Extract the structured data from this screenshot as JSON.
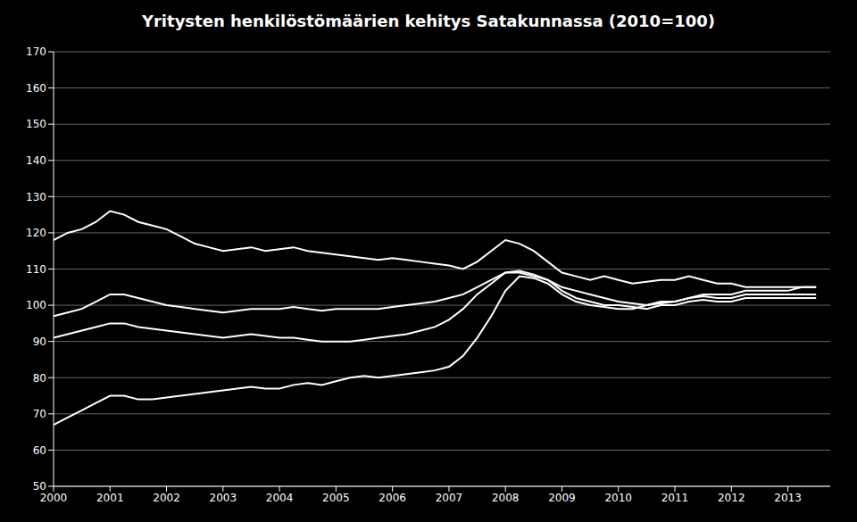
{
  "chart_data": {
    "type": "line",
    "title": "Yritysten henkilöstömäärien kehitys Satakunnassa (2010=100)",
    "color": "#ffffff",
    "grid": true,
    "legend": false,
    "xlim": [
      2000.0,
      2013.75
    ],
    "xticks": [
      2000,
      2001,
      2002,
      2003,
      2004,
      2005,
      2006,
      2007,
      2008,
      2009,
      2010,
      2011,
      2012,
      2013
    ],
    "ylim": [
      50,
      170
    ],
    "yticks": [
      50,
      60,
      70,
      80,
      90,
      100,
      110,
      120,
      130,
      140,
      150,
      160,
      170
    ],
    "x": [
      2000.0,
      2000.25,
      2000.5,
      2000.75,
      2001.0,
      2001.25,
      2001.5,
      2001.75,
      2002.0,
      2002.25,
      2002.5,
      2002.75,
      2003.0,
      2003.25,
      2003.5,
      2003.75,
      2004.0,
      2004.25,
      2004.5,
      2004.75,
      2005.0,
      2005.25,
      2005.5,
      2005.75,
      2006.0,
      2006.25,
      2006.5,
      2006.75,
      2007.0,
      2007.25,
      2007.5,
      2007.75,
      2008.0,
      2008.25,
      2008.5,
      2008.75,
      2009.0,
      2009.25,
      2009.5,
      2009.75,
      2010.0,
      2010.25,
      2010.5,
      2010.75,
      2011.0,
      2011.25,
      2011.5,
      2011.75,
      2012.0,
      2012.25,
      2012.5,
      2012.75,
      2013.0,
      2013.25,
      2013.5
    ],
    "series": [
      {
        "values": [
          118,
          120,
          121,
          123,
          126,
          125,
          123,
          122,
          121,
          119,
          117,
          116,
          115,
          115.5,
          116,
          115,
          115.5,
          116,
          115,
          114.5,
          114,
          113.5,
          113,
          112.5,
          113,
          112.5,
          112,
          111.5,
          111,
          110,
          112,
          115,
          118,
          117,
          115,
          112,
          109,
          108,
          107,
          108,
          107,
          106,
          106.5,
          107,
          107,
          108,
          107,
          106,
          106,
          105,
          105,
          105,
          105,
          105,
          105
        ]
      },
      {
        "values": [
          97,
          98,
          99,
          101,
          103,
          103,
          102,
          101,
          100,
          99.5,
          99,
          98.5,
          98,
          98.5,
          99,
          99,
          99,
          99.5,
          99,
          98.5,
          99,
          99,
          99,
          99,
          99.5,
          100,
          100.5,
          101,
          102,
          103,
          105,
          107,
          109,
          109,
          108,
          107,
          105,
          104,
          103,
          102,
          101,
          100.5,
          100,
          101,
          101,
          102,
          102.5,
          102,
          102,
          103,
          103,
          103,
          103,
          103,
          103
        ]
      },
      {
        "values": [
          91,
          92,
          93,
          94,
          95,
          95,
          94,
          93.5,
          93,
          92.5,
          92,
          91.5,
          91,
          91.5,
          92,
          91.5,
          91,
          91,
          90.5,
          90,
          90,
          90,
          90.5,
          91,
          91.5,
          92,
          93,
          94,
          96,
          99,
          103,
          106,
          109,
          109.5,
          108.5,
          107,
          104,
          102,
          101,
          100,
          100,
          99.5,
          99,
          100,
          100,
          101,
          101.5,
          101,
          101,
          102,
          102,
          102,
          102,
          102,
          102
        ]
      },
      {
        "values": [
          67,
          69,
          71,
          73,
          75,
          75,
          74,
          74,
          74.5,
          75,
          75.5,
          76,
          76.5,
          77,
          77.5,
          77,
          77,
          78,
          78.5,
          78,
          79,
          80,
          80.5,
          80,
          80.5,
          81,
          81.5,
          82,
          83,
          86,
          91,
          97,
          104,
          108,
          107.5,
          106,
          103,
          101,
          100,
          99.5,
          99,
          99,
          100,
          100.5,
          101,
          102,
          103,
          103,
          103,
          104,
          104,
          104,
          104,
          105,
          105
        ]
      }
    ]
  }
}
